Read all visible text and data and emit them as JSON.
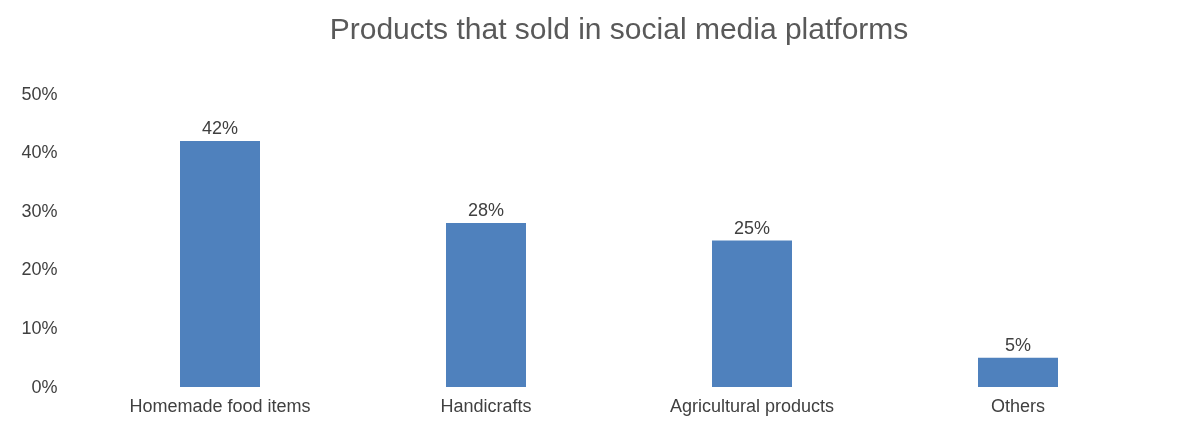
{
  "chart_data": {
    "type": "bar",
    "title": "Products that sold in social media platforms",
    "categories": [
      "Homemade food items",
      "Handicrafts",
      "Agricultural products",
      "Others"
    ],
    "values": [
      42,
      28,
      25,
      5
    ],
    "value_labels": [
      "42%",
      "28%",
      "25%",
      "5%"
    ],
    "color": "#4f81bd",
    "ylim": [
      0,
      50
    ],
    "yticks": [
      {
        "value": 0,
        "label": "0%"
      },
      {
        "value": 10,
        "label": "10%"
      },
      {
        "value": 20,
        "label": "20%"
      },
      {
        "value": 30,
        "label": "30%"
      },
      {
        "value": 40,
        "label": "40%"
      },
      {
        "value": 50,
        "label": "50%"
      }
    ],
    "grid": false
  }
}
